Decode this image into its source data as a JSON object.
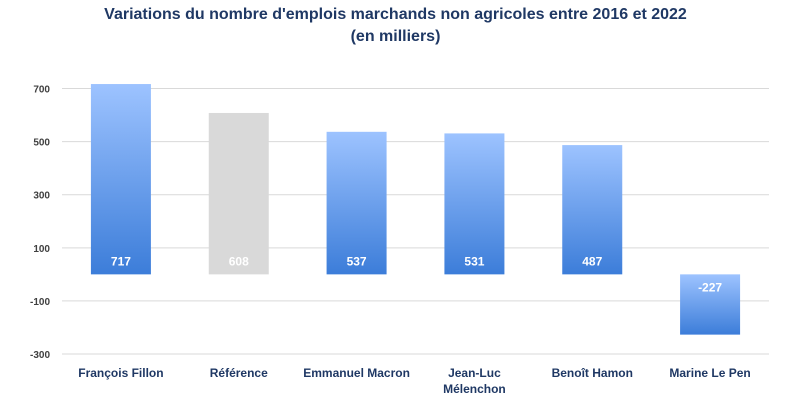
{
  "chart_data": {
    "type": "bar",
    "title_line1": "Variations du nombre d'emplois marchands non agricoles entre 2016 et 2022",
    "title_line2": "(en milliers)",
    "categories": [
      [
        "François Fillon"
      ],
      [
        "Référence"
      ],
      [
        "Emmanuel Macron"
      ],
      [
        "Jean-Luc",
        "Mélenchon"
      ],
      [
        "Benoît Hamon"
      ],
      [
        "Marine Le Pen"
      ]
    ],
    "values": [
      717,
      608,
      537,
      531,
      487,
      -227
    ],
    "value_labels": [
      "717",
      "608",
      "537",
      "531",
      "487",
      "-227"
    ],
    "bar_styles": [
      "blue",
      "gray",
      "blue",
      "blue",
      "blue",
      "blue"
    ],
    "y_ticks": [
      700,
      500,
      300,
      100,
      -100,
      -300
    ],
    "y_tick_labels": [
      "700",
      "500",
      "300",
      "100",
      "-100",
      "-300"
    ],
    "ylim": [
      -300,
      800
    ],
    "grid": true,
    "xlabel": "",
    "ylabel": "",
    "colors": {
      "blue_top": "#9dc3ff",
      "blue_bottom": "#3c7dd9",
      "gray": "#d9d9d9",
      "grid": "#d9d9d9",
      "title": "#1f3864"
    }
  }
}
